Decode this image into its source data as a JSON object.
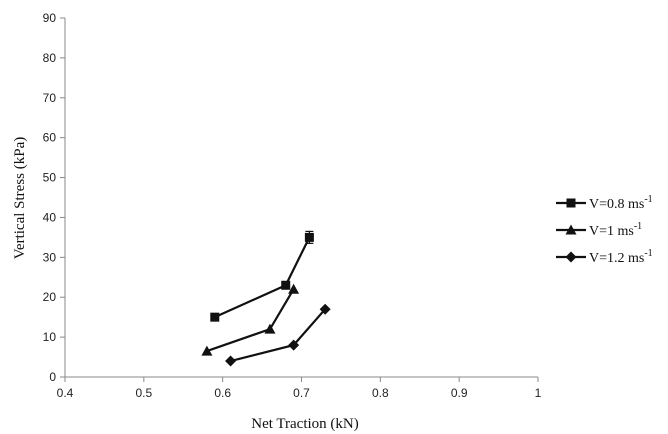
{
  "chart_data": {
    "type": "line",
    "title": "",
    "xlabel": "Net Traction (kN)",
    "ylabel": "Vertical Stress (kPa)",
    "xlim": [
      0.4,
      1.0
    ],
    "ylim": [
      0,
      90
    ],
    "xticks": [
      "0.4",
      "0.5",
      "0.6",
      "0.7",
      "0.8",
      "0.9",
      "1"
    ],
    "yticks": [
      "0",
      "10",
      "20",
      "30",
      "40",
      "50",
      "60",
      "70",
      "80",
      "90"
    ],
    "grid": false,
    "legend_position": "right",
    "series": [
      {
        "name": "V=0.8 ms-1",
        "name_base": "V=0.8 ms",
        "name_sup": "-1",
        "marker": "square",
        "color": "#111111",
        "x": [
          0.59,
          0.68,
          0.71
        ],
        "y": [
          15,
          23,
          35
        ],
        "yerr": [
          0,
          0,
          1.5
        ]
      },
      {
        "name": "V=1 ms-1",
        "name_base": "V=1 ms",
        "name_sup": "-1",
        "marker": "triangle",
        "color": "#111111",
        "x": [
          0.58,
          0.66,
          0.69
        ],
        "y": [
          6.5,
          12,
          22
        ],
        "yerr": [
          0,
          0,
          0
        ]
      },
      {
        "name": "V=1.2 ms-1",
        "name_base": "V=1.2 ms",
        "name_sup": "-1",
        "marker": "diamond",
        "color": "#111111",
        "x": [
          0.61,
          0.69,
          0.73
        ],
        "y": [
          4,
          8,
          17
        ],
        "yerr": [
          0,
          0,
          0
        ]
      }
    ]
  }
}
